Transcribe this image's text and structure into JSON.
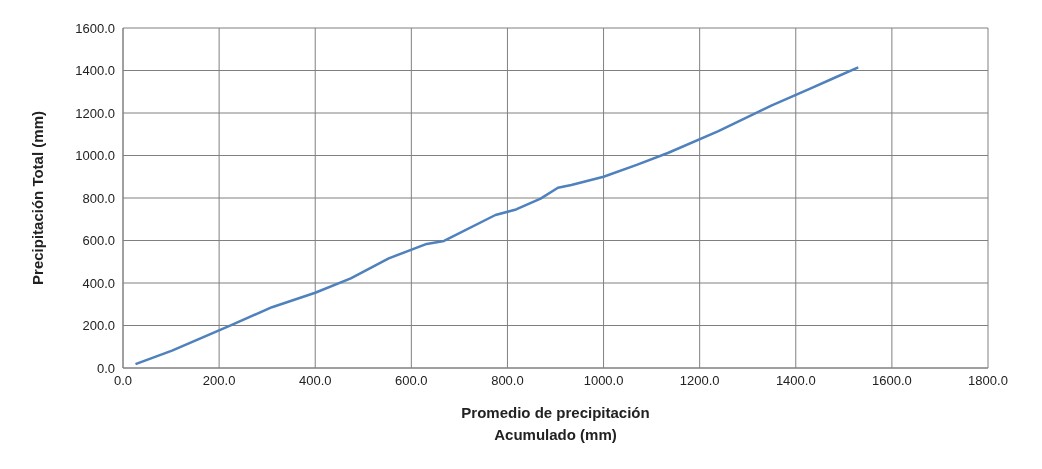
{
  "chart_data": {
    "type": "line",
    "xlabel": "Promedio de precipitación\nAcumulado (mm)",
    "ylabel": "Precipitación Total (mm)",
    "x": [
      26,
      102,
      224,
      310,
      400,
      474,
      553,
      632,
      668,
      775,
      818,
      869,
      905,
      933,
      1000,
      1069,
      1135,
      1239,
      1349,
      1430,
      1482,
      1530
    ],
    "series": [
      {
        "color": "#4f81bd",
        "values": [
          18,
          82,
          201,
          286,
          354,
          422,
          516,
          584,
          598,
          720,
          746,
          797,
          848,
          861,
          900,
          956,
          1013,
          1115,
          1235,
          1315,
          1367,
          1415
        ]
      }
    ],
    "xlim": [
      0,
      1800
    ],
    "xticks": [
      {
        "value": 0,
        "label": "0.0"
      },
      {
        "value": 200,
        "label": "200.0"
      },
      {
        "value": 400,
        "label": "400.0"
      },
      {
        "value": 600,
        "label": "600.0"
      },
      {
        "value": 800,
        "label": "800.0"
      },
      {
        "value": 1000,
        "label": "1000.0"
      },
      {
        "value": 1200,
        "label": "1200.0"
      },
      {
        "value": 1400,
        "label": "1400.0"
      },
      {
        "value": 1600,
        "label": "1600.0"
      },
      {
        "value": 1800,
        "label": "1800.0"
      }
    ],
    "ylim": [
      0,
      1600
    ],
    "yticks": [
      {
        "value": 0,
        "label": "0.0"
      },
      {
        "value": 200,
        "label": "200.0"
      },
      {
        "value": 400,
        "label": "400.0"
      },
      {
        "value": 600,
        "label": "600.0"
      },
      {
        "value": 800,
        "label": "800.0"
      },
      {
        "value": 1000,
        "label": "1000.0"
      },
      {
        "value": 1200,
        "label": "1200.0"
      },
      {
        "value": 1400,
        "label": "1400.0"
      },
      {
        "value": 1600,
        "label": "1600.0"
      }
    ],
    "grid": true,
    "marker": "none",
    "line_style": "solid"
  }
}
